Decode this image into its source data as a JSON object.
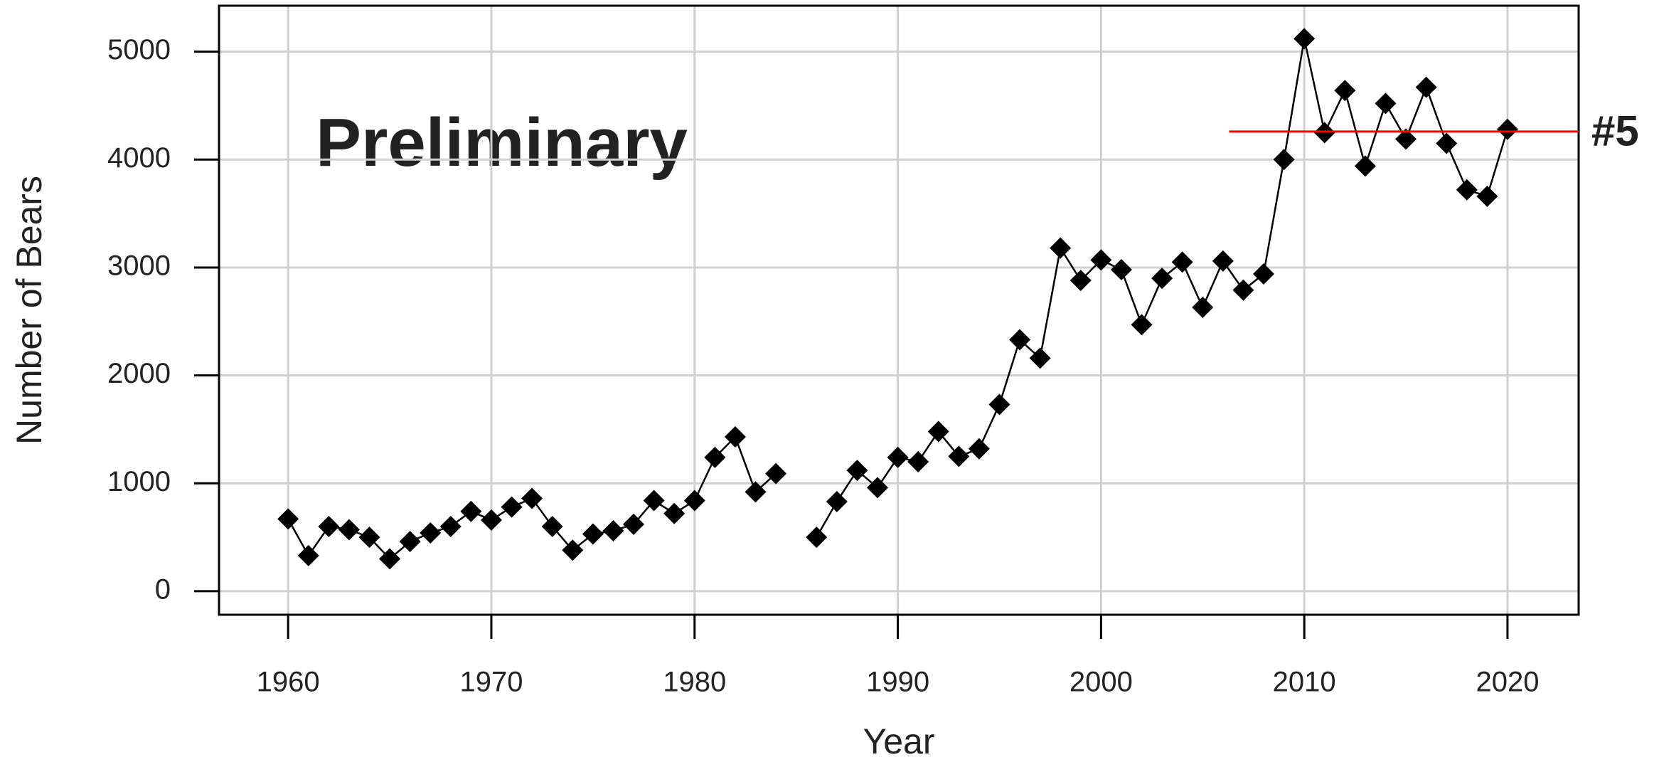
{
  "chart_data": {
    "type": "line",
    "annotation": "Preliminary",
    "xlabel": "Year",
    "ylabel": "Number of Bears",
    "x": [
      1960,
      1961,
      1962,
      1963,
      1964,
      1965,
      1966,
      1967,
      1968,
      1969,
      1970,
      1971,
      1972,
      1973,
      1974,
      1975,
      1976,
      1977,
      1978,
      1979,
      1980,
      1981,
      1982,
      1983,
      1984,
      1985,
      1986,
      1987,
      1988,
      1989,
      1990,
      1991,
      1992,
      1993,
      1994,
      1995,
      1996,
      1997,
      1998,
      1999,
      2000,
      2001,
      2002,
      2003,
      2004,
      2005,
      2006,
      2007,
      2008,
      2009,
      2010,
      2011,
      2012,
      2013,
      2014,
      2015,
      2016,
      2017,
      2018,
      2019,
      2020
    ],
    "series": [
      {
        "name": "Number of Bears",
        "color": "#000000",
        "values": [
          670,
          330,
          600,
          570,
          500,
          300,
          460,
          540,
          600,
          740,
          660,
          780,
          860,
          600,
          380,
          530,
          560,
          620,
          840,
          720,
          840,
          1240,
          1430,
          920,
          1090,
          null,
          500,
          830,
          1120,
          960,
          1240,
          1200,
          1480,
          1250,
          1320,
          1730,
          2330,
          2160,
          3180,
          2880,
          3070,
          2980,
          2470,
          2900,
          3050,
          2630,
          3060,
          2790,
          2940,
          4000,
          5120,
          4250,
          4640,
          3940,
          4520,
          4190,
          4670,
          4150,
          3720,
          3660,
          4280
        ]
      }
    ],
    "reference_line": {
      "value": 4260,
      "x_start": 2006.3,
      "label": "#5",
      "color": "#ff0000"
    },
    "xlim": [
      1956.6,
      2023.5
    ],
    "ylim": [
      -218,
      5426
    ],
    "xticks": [
      1960,
      1970,
      1980,
      1990,
      2000,
      2010,
      2020
    ],
    "yticks": [
      0,
      1000,
      2000,
      3000,
      4000,
      5000
    ],
    "grid": true
  }
}
